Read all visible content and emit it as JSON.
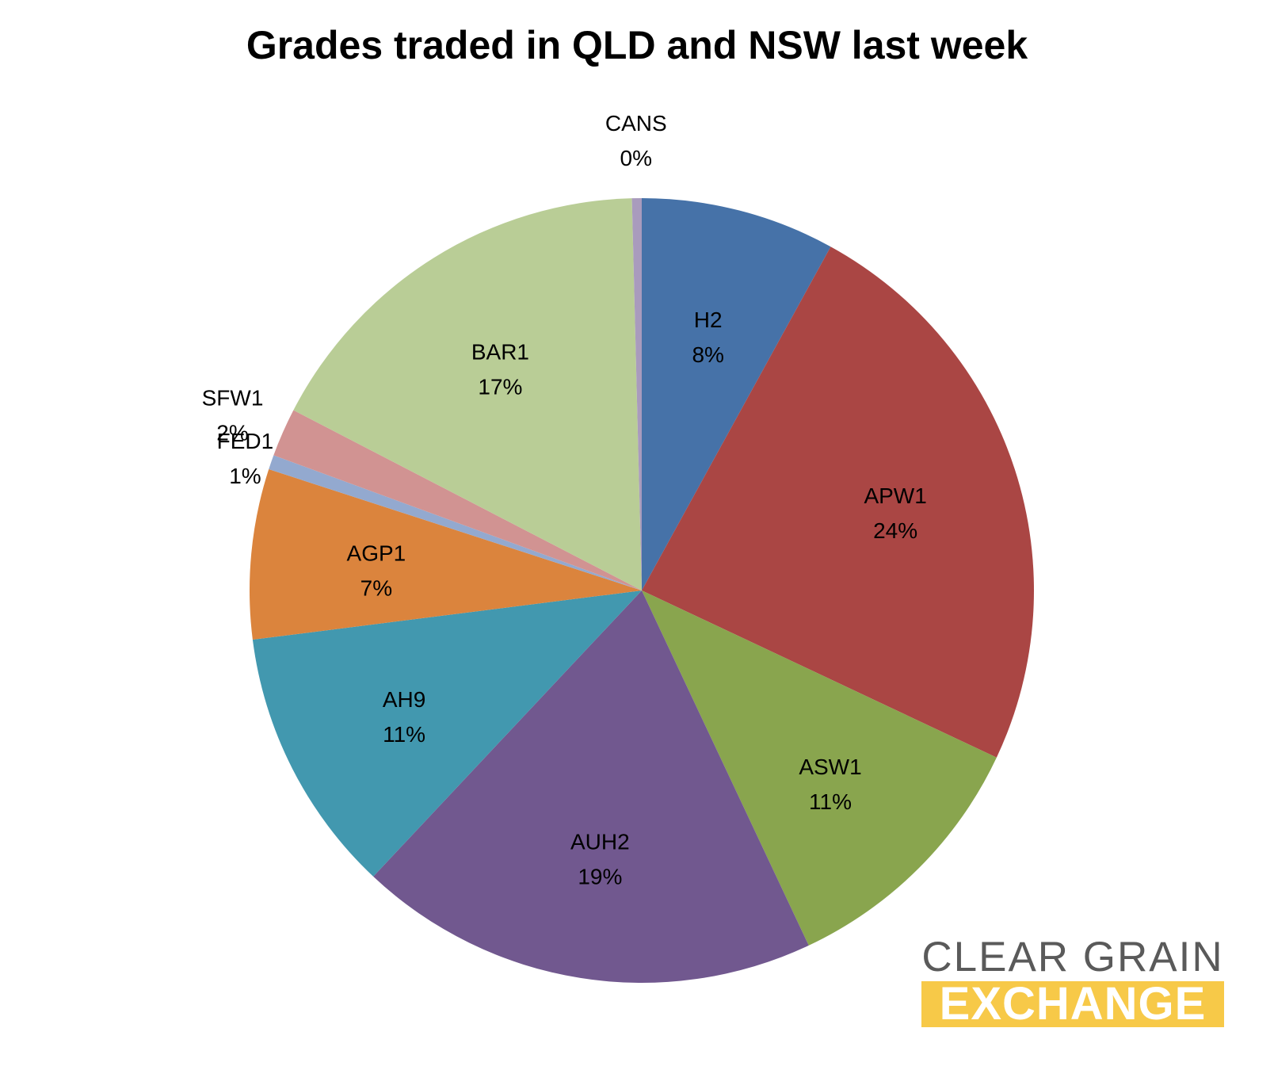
{
  "chart_data": {
    "type": "pie",
    "title": "Grades traded in QLD and NSW last week",
    "slices": [
      {
        "name": "H2",
        "value": 8,
        "label": "8%",
        "color": "#4672a8"
      },
      {
        "name": "APW1",
        "value": 24,
        "label": "24%",
        "color": "#aa4644"
      },
      {
        "name": "ASW1",
        "value": 11,
        "label": "11%",
        "color": "#89a54e"
      },
      {
        "name": "AUH2",
        "value": 19,
        "label": "19%",
        "color": "#71588f"
      },
      {
        "name": "AH9",
        "value": 11,
        "label": "11%",
        "color": "#4298af"
      },
      {
        "name": "AGP1",
        "value": 7,
        "label": "7%",
        "color": "#db843d"
      },
      {
        "name": "FED1",
        "value": 0.6,
        "label": "1%",
        "color": "#93a9cf"
      },
      {
        "name": "SFW1",
        "value": 2,
        "label": "2%",
        "color": "#d19392"
      },
      {
        "name": "BAR1",
        "value": 17,
        "label": "17%",
        "color": "#b9cd96"
      },
      {
        "name": "CANS",
        "value": 0.4,
        "label": "0%",
        "color": "#a99bbd"
      }
    ],
    "start_angle": "12 o'clock",
    "direction": "clockwise",
    "legend": "none"
  },
  "logo": {
    "line1": "CLEAR GRAIN",
    "line2": "EXCHANGE"
  }
}
